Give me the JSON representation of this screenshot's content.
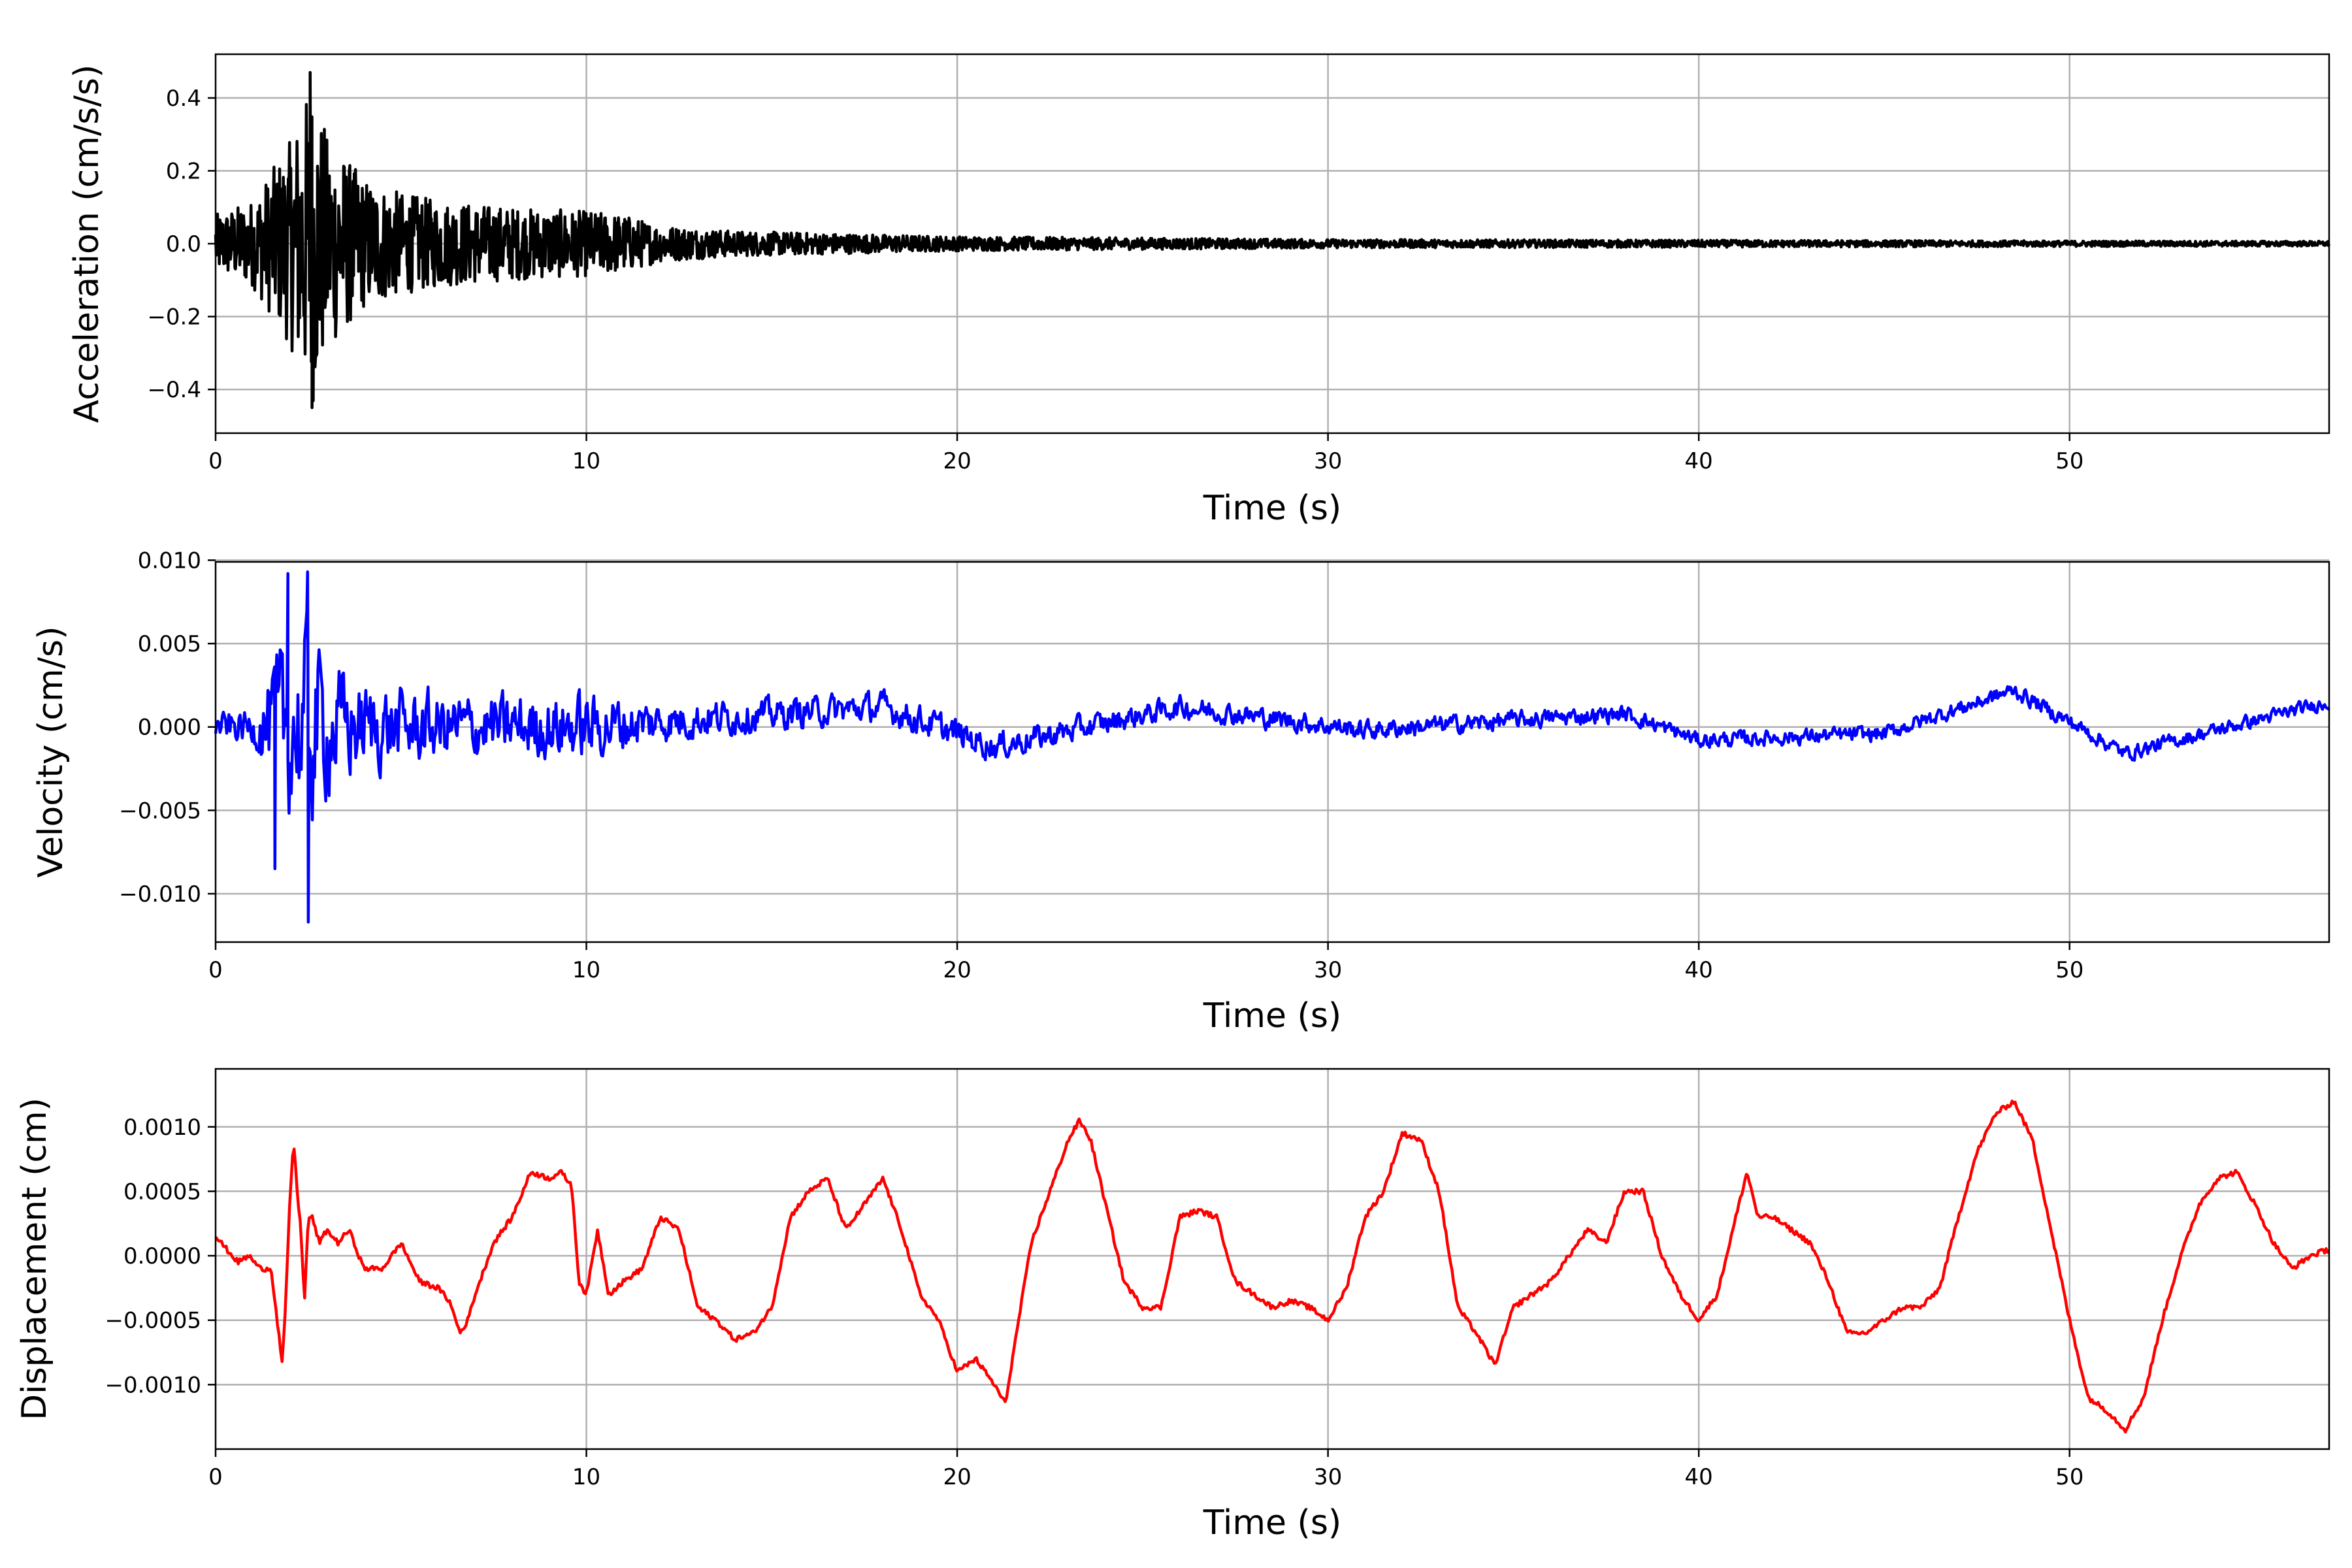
{
  "chart_data": [
    {
      "type": "line",
      "xlabel": "Time (s)",
      "ylabel": "Acceleration (cm/s/s)",
      "xlim": [
        0,
        57
      ],
      "ylim": [
        -0.52,
        0.52
      ],
      "xticks": [
        0,
        10,
        20,
        30,
        40,
        50
      ],
      "xtick_labels": [
        "0",
        "10",
        "20",
        "30",
        "40",
        "50"
      ],
      "yticks": [
        -0.4,
        -0.2,
        0.0,
        0.2,
        0.4
      ],
      "ytick_labels": [
        "−0.4",
        "−0.2",
        "0.0",
        "0.2",
        "0.4"
      ],
      "grid": true,
      "color": "#000000",
      "envelope": {
        "t": [
          0,
          1,
          2,
          2.6,
          3,
          4,
          5,
          6,
          8,
          10,
          11,
          12,
          14,
          16,
          18,
          20,
          25,
          30,
          40,
          50,
          57
        ],
        "amp": [
          0.08,
          0.12,
          0.28,
          0.45,
          0.3,
          0.18,
          0.14,
          0.12,
          0.1,
          0.09,
          0.08,
          0.05,
          0.035,
          0.03,
          0.025,
          0.02,
          0.016,
          0.012,
          0.01,
          0.008,
          0.007
        ]
      }
    },
    {
      "type": "line",
      "xlabel": "Time (s)",
      "ylabel": "Velocity (cm/s)",
      "xlim": [
        0,
        57
      ],
      "ylim": [
        -0.0129,
        0.0099
      ],
      "xticks": [
        0,
        10,
        20,
        30,
        40,
        50
      ],
      "xtick_labels": [
        "0",
        "10",
        "20",
        "30",
        "40",
        "50"
      ],
      "yticks": [
        -0.01,
        -0.005,
        0.0,
        0.005,
        0.01
      ],
      "ytick_labels": [
        "−0.010",
        "−0.005",
        "0.000",
        "0.005",
        "0.010"
      ],
      "grid": true,
      "color": "#0000ff",
      "envelope": {
        "t": [
          0,
          1,
          1.6,
          2,
          2.5,
          3,
          4,
          6,
          8,
          10,
          12,
          15,
          20,
          25,
          30,
          40,
          50,
          57
        ],
        "amp": [
          0.0012,
          0.0015,
          0.006,
          0.008,
          0.009,
          0.006,
          0.004,
          0.003,
          0.0028,
          0.003,
          0.0018,
          0.0014,
          0.0013,
          0.001,
          0.0009,
          0.0007,
          0.0007,
          0.0006
        ]
      },
      "drift": {
        "t": [
          0,
          10,
          18,
          21,
          26,
          31,
          35,
          38,
          40,
          45,
          48.5,
          51.5,
          55,
          57
        ],
        "v": [
          0,
          0,
          0.0012,
          -0.0012,
          0.0012,
          -0.0002,
          0.0004,
          0.0008,
          -0.0008,
          -0.0004,
          0.0022,
          -0.0016,
          0.0004,
          0.0015
        ]
      }
    },
    {
      "type": "line",
      "xlabel": "Time (s)",
      "ylabel": "Displacement (cm)",
      "xlim": [
        0,
        57
      ],
      "ylim": [
        -0.0015,
        0.00145
      ],
      "xticks": [
        0,
        10,
        20,
        30,
        40,
        50
      ],
      "xtick_labels": [
        "0",
        "10",
        "20",
        "30",
        "40",
        "50"
      ],
      "yticks": [
        -0.001,
        -0.0005,
        0.0,
        0.0005,
        0.001
      ],
      "ytick_labels": [
        "−0.0010",
        "−0.0005",
        "0.0000",
        "0.0005",
        "0.0010"
      ],
      "grid": true,
      "color": "#ff0000",
      "x": [
        0,
        0.3,
        0.6,
        0.9,
        1.2,
        1.5,
        1.7,
        1.8,
        1.9,
        2.0,
        2.1,
        2.2,
        2.3,
        2.4,
        2.5,
        2.6,
        2.8,
        3.0,
        3.3,
        3.6,
        4.0,
        4.5,
        5.0,
        5.5,
        6.0,
        6.3,
        6.6,
        6.8,
        7.0,
        7.5,
        8.0,
        8.5,
        9.0,
        9.3,
        9.6,
        9.8,
        10.0,
        10.3,
        10.6,
        11.0,
        11.5,
        12.0,
        12.5,
        13.0,
        13.5,
        14.0,
        14.5,
        15.0,
        15.5,
        16.0,
        16.5,
        17.0,
        17.5,
        18.0,
        18.5,
        19.0,
        19.5,
        20.0,
        20.5,
        21.0,
        21.3,
        21.6,
        22.0,
        22.5,
        23.0,
        23.3,
        23.6,
        24.0,
        24.5,
        25.0,
        25.5,
        26.0,
        26.5,
        27.0,
        27.5,
        28.0,
        28.5,
        29.0,
        29.5,
        30.0,
        30.5,
        31.0,
        31.5,
        32.0,
        32.5,
        33.0,
        33.5,
        34.0,
        34.5,
        35.0,
        35.5,
        36.0,
        36.5,
        37.0,
        37.5,
        38.0,
        38.5,
        39.0,
        39.5,
        40.0,
        40.5,
        41.0,
        41.3,
        41.6,
        42.0,
        42.5,
        43.0,
        43.5,
        44.0,
        44.5,
        45.0,
        45.5,
        46.0,
        46.5,
        47.0,
        47.5,
        48.0,
        48.5,
        49.0,
        49.5,
        50.0,
        50.5,
        51.0,
        51.5,
        52.0,
        52.5,
        53.0,
        53.5,
        54.0,
        54.5,
        55.0,
        55.5,
        56.0,
        56.5,
        57.0
      ],
      "y": [
        0.00015,
        5e-05,
        -5e-05,
        0.0,
        -0.0001,
        -0.0001,
        -0.0006,
        -0.00085,
        -0.0003,
        0.0004,
        0.0009,
        0.0005,
        0.0002,
        -0.00035,
        0.0003,
        0.0003,
        0.0001,
        0.0002,
        0.0001,
        0.0002,
        -0.0001,
        -0.0001,
        0.0001,
        -0.0002,
        -0.00025,
        -0.00035,
        -0.0006,
        -0.0005,
        -0.0003,
        0.0001,
        0.0003,
        0.00065,
        0.0006,
        0.00065,
        0.00055,
        -0.0002,
        -0.0003,
        0.0002,
        -0.0003,
        -0.0002,
        -0.0001,
        0.0003,
        0.0002,
        -0.0004,
        -0.0005,
        -0.00065,
        -0.0006,
        -0.0004,
        0.0003,
        0.0005,
        0.0006,
        0.0002,
        0.0004,
        0.0006,
        0.0002,
        -0.0003,
        -0.0005,
        -0.0009,
        -0.0008,
        -0.001,
        -0.00115,
        -0.0006,
        0.0001,
        0.0005,
        0.0009,
        0.00105,
        0.0009,
        0.0004,
        -0.0002,
        -0.0004,
        -0.0004,
        0.0003,
        0.00035,
        0.0003,
        -0.0002,
        -0.0003,
        -0.0004,
        -0.00035,
        -0.0004,
        -0.0005,
        -0.00025,
        0.0003,
        0.0005,
        0.00095,
        0.0009,
        0.0005,
        -0.0004,
        -0.0006,
        -0.00085,
        -0.0004,
        -0.0003,
        -0.0002,
        0.0,
        0.0002,
        0.0001,
        0.0005,
        0.0005,
        0.0,
        -0.0003,
        -0.0005,
        -0.0003,
        0.0003,
        0.00065,
        0.0003,
        0.0003,
        0.0002,
        0.0001,
        -0.0002,
        -0.0006,
        -0.0006,
        -0.0005,
        -0.0004,
        -0.0004,
        -0.00025,
        0.0003,
        0.0008,
        0.0011,
        0.0012,
        0.0009,
        0.0002,
        -0.0005,
        -0.0011,
        -0.0012,
        -0.00135,
        -0.0011,
        -0.0005,
        0.0,
        0.0004,
        0.0006,
        0.00065,
        0.0004,
        0.0001,
        -0.0001,
        0.0,
        5e-05
      ]
    }
  ]
}
